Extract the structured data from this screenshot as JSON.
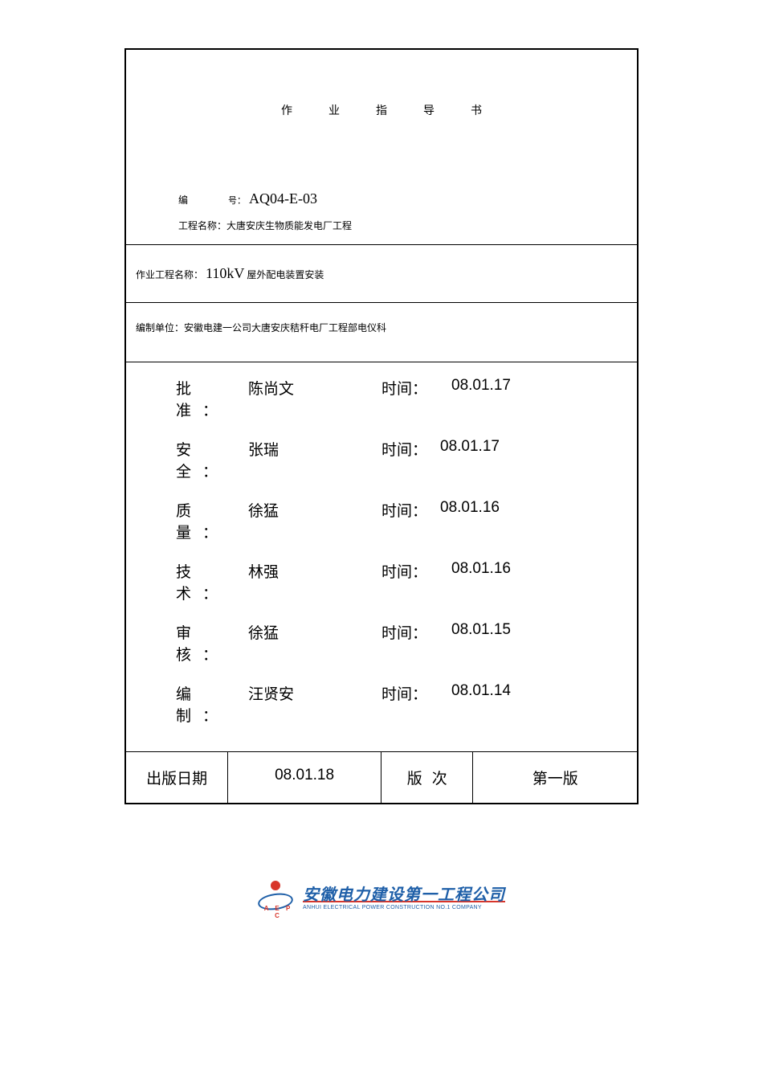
{
  "title": "作业指导书",
  "code": {
    "label": "编",
    "label2": "号：",
    "value": "AQ04-E-03"
  },
  "project": {
    "label": "工程名称：",
    "value": "大唐安庆生物质能发电厂工程"
  },
  "workName": {
    "label": "作业工程名称：",
    "big": "110kV",
    "rest": "屋外配电装置安装"
  },
  "dept": {
    "label": "编制单位：",
    "value": "安徽电建一公司大唐安庆秸秆电厂工程部电仪科"
  },
  "signatures": [
    {
      "label": "批 准：",
      "name": "陈尚文",
      "timeLabel": "时间：",
      "time": "08.01.17",
      "spaced": true
    },
    {
      "label": "安 全：",
      "name": "张瑞",
      "timeLabel": "时间：",
      "time": "08.01.17",
      "spaced": false
    },
    {
      "label": "质 量：",
      "name": "徐猛",
      "timeLabel": "时间：",
      "time": "08.01.16",
      "spaced": false
    },
    {
      "label": "技 术：",
      "name": "林强",
      "timeLabel": "时间：",
      "time": "08.01.16",
      "spaced": true
    },
    {
      "label": "审 核：",
      "name": "徐猛",
      "timeLabel": "时间：",
      "time": "08.01.15",
      "spaced": true
    },
    {
      "label": "编 制：",
      "name": "汪贤安",
      "timeLabel": "时间：",
      "time": "08.01.14",
      "spaced": true
    }
  ],
  "footer": {
    "pubDateLabel": "出版日期",
    "pubDate": "08.01.18",
    "versionLabel": "版次",
    "version": "第一版"
  },
  "logo": {
    "aepc": "A E P C",
    "cn": "安徽电力建设第一工程公司",
    "en": "ANHUI ELECTRICAL POWER CONSTRUCTION NO.1 COMPANY"
  }
}
